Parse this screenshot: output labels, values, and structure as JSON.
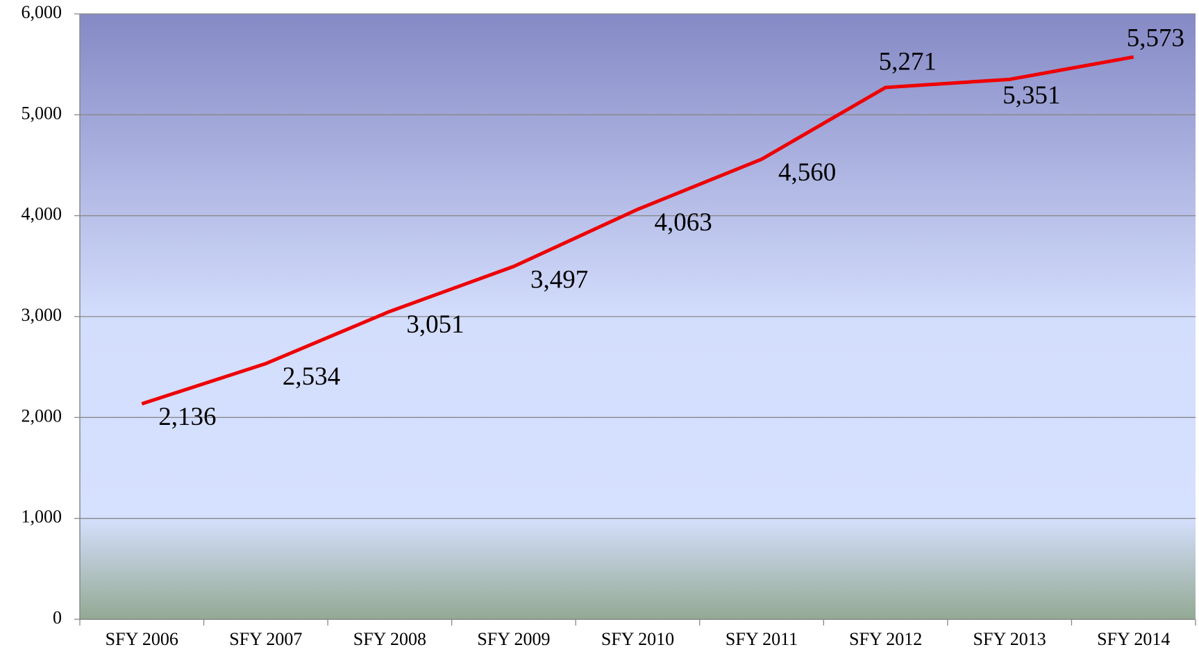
{
  "chart_data": {
    "type": "line",
    "categories": [
      "SFY 2006",
      "SFY 2007",
      "SFY 2008",
      "SFY 2009",
      "SFY 2010",
      "SFY 2011",
      "SFY 2012",
      "SFY 2013",
      "SFY 2014"
    ],
    "series": [
      {
        "color": "#ee0000",
        "values": [
          2136,
          2534,
          3051,
          3497,
          4063,
          4560,
          5271,
          5351,
          5573
        ],
        "value_labels": [
          "2,136",
          "2,534",
          "3,051",
          "3,497",
          "4,063",
          "4,560",
          "5,271",
          "5,351",
          "5,573"
        ]
      }
    ],
    "ylim": [
      0,
      6000
    ],
    "yticks": [
      0,
      {
        "value": 1000,
        "label": "1,000"
      },
      {
        "value": 2000,
        "label": "2,000"
      },
      {
        "value": 3000,
        "label": "3,000"
      },
      {
        "value": 4000,
        "label": "4,000"
      },
      {
        "value": 5000,
        "label": "5,000"
      },
      {
        "value": 6000,
        "label": "6,000"
      }
    ],
    "grid": true
  }
}
